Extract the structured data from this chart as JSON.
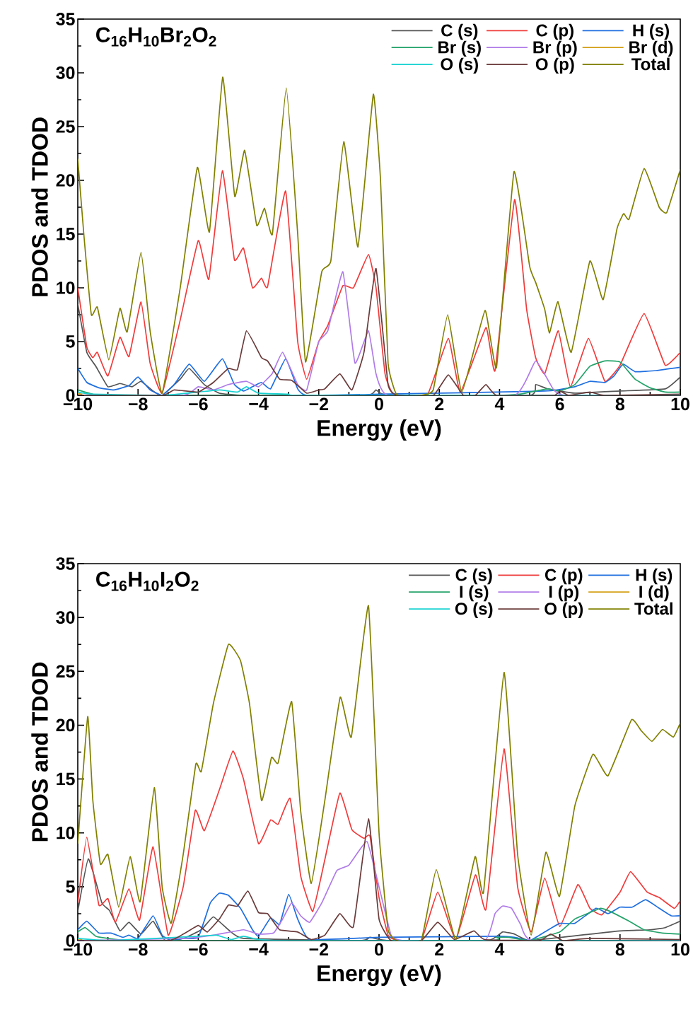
{
  "chart_data": [
    {
      "type": "line",
      "title": "C$_{16}$H$_{10}$Br$_{2}$O$_{2}$",
      "xlabel": "Energy (eV)",
      "ylabel": "PDOS and TDOD",
      "xlim": [
        -10,
        10
      ],
      "ylim": [
        0,
        35
      ],
      "xticks": [
        {
          "value": -10,
          "label": "−10"
        },
        {
          "value": -8,
          "label": "−8"
        },
        {
          "value": -6,
          "label": "−6"
        },
        {
          "value": -4,
          "label": "−4"
        },
        {
          "value": -2,
          "label": "−2"
        },
        0,
        2,
        4,
        6,
        8,
        10
      ],
      "yticks": [
        0,
        5,
        10,
        15,
        20,
        25,
        30,
        35
      ],
      "legend": "top right",
      "marker": "none",
      "line_style": "solid",
      "series": [
        {
          "name": "C (s)",
          "color": "#555555",
          "x": [
            -10,
            -9.7,
            -9.4,
            -9.0,
            -8.6,
            -8.2,
            -7.9,
            -7.5,
            -7.2,
            -6.6,
            -6.3,
            -5.8,
            -5.3,
            -4.5,
            -0.4,
            -0.1,
            0.3,
            5.0,
            5.2,
            5.6,
            6.5,
            8,
            9.5,
            10
          ],
          "values": [
            8.5,
            4,
            2.7,
            0.8,
            1.1,
            0.8,
            1.3,
            0.4,
            0,
            1.5,
            2.5,
            1,
            0.2,
            0,
            0,
            0.5,
            0,
            0,
            1.0,
            0.6,
            0.2,
            0.4,
            0.6,
            1.7
          ]
        },
        {
          "name": "C (p)",
          "color": "#f03c3c",
          "x": [
            -10,
            -9.7,
            -9.5,
            -9.35,
            -9.0,
            -8.6,
            -8.3,
            -7.9,
            -7.6,
            -7.2,
            -6.6,
            -6.0,
            -5.65,
            -5.2,
            -4.8,
            -4.5,
            -4.2,
            -3.9,
            -3.7,
            -3.1,
            -2.7,
            -2.4,
            -2.0,
            -1.7,
            -1.2,
            -0.85,
            -0.35,
            -0.1,
            0.2,
            0.5,
            1.6,
            2.3,
            2.7,
            3.55,
            3.85,
            4.5,
            4.9,
            5.2,
            5.5,
            5.95,
            6.35,
            6.95,
            7.5,
            8.0,
            8.8,
            9.5,
            10
          ],
          "values": [
            10,
            4.5,
            3.5,
            4,
            1.8,
            5.4,
            3.6,
            8.7,
            3,
            0.2,
            7,
            14.4,
            10.8,
            20.9,
            12.6,
            13.7,
            10,
            10.9,
            10.1,
            19,
            5,
            1.5,
            5,
            6.5,
            10.2,
            10,
            13.1,
            10,
            2,
            0,
            0,
            5.3,
            0.3,
            6.3,
            2.3,
            18.2,
            8,
            3.5,
            2,
            6,
            0.8,
            5.3,
            1.3,
            2.8,
            7.6,
            2.8,
            4
          ]
        },
        {
          "name": "H (s)",
          "color": "#1f6fe0",
          "x": [
            -10,
            -9.7,
            -9.3,
            -8.8,
            -8.3,
            -8.0,
            -7.6,
            -7.2,
            -6.8,
            -6.3,
            -5.8,
            -5.2,
            -4.8,
            -4.5,
            -4.2,
            -3.9,
            -3.6,
            -3.1,
            -2.7,
            -2.4,
            0,
            5.5,
            6.5,
            7.0,
            7.5,
            7.8,
            8.1,
            8.5,
            9.2,
            10
          ],
          "values": [
            2.5,
            1.2,
            0.7,
            0.5,
            0.9,
            1.7,
            0.5,
            0,
            1,
            2.9,
            1.3,
            3.4,
            1.0,
            0.4,
            0.8,
            1.2,
            0.6,
            3.4,
            0.6,
            0,
            0.1,
            0.4,
            0.8,
            1.3,
            1.2,
            1.8,
            2.9,
            2.2,
            2.3,
            2.6
          ]
        },
        {
          "name": "Br (s)",
          "color": "#23a36a",
          "x": [
            -10,
            -9.5,
            -9,
            4,
            5,
            5.6,
            6.0,
            6.5,
            7.0,
            7.5,
            8.0,
            8.5,
            9.0,
            9.5,
            10
          ],
          "values": [
            0.5,
            0.1,
            0,
            0,
            0.3,
            0.6,
            0.4,
            1.0,
            2.7,
            3.2,
            3.1,
            1.5,
            0.7,
            0.3,
            0.3
          ]
        },
        {
          "name": "Br (p)",
          "color": "#b07ce8",
          "x": [
            -10,
            -6.5,
            -6.0,
            -5.5,
            -5.0,
            -4.4,
            -4.0,
            -3.55,
            -3.2,
            -2.7,
            -2.4,
            -2.0,
            -1.7,
            -1.2,
            -0.8,
            -0.35,
            -0.1,
            0.3,
            4.5,
            5.2,
            5.8,
            6.2,
            10
          ],
          "values": [
            0,
            0,
            0.8,
            0.5,
            1,
            1.3,
            0.8,
            2,
            4,
            1,
            0.5,
            5,
            6,
            11.5,
            3,
            6,
            2,
            0,
            0,
            3.2,
            0.5,
            0,
            0
          ]
        },
        {
          "name": "Br (d)",
          "color": "#d4a017",
          "x": [
            -10,
            -9.85
          ],
          "values": [
            0.15,
            0.1
          ]
        },
        {
          "name": "O (s)",
          "color": "#19d2d2",
          "x": [
            -10,
            -9.5,
            -7.2,
            -6,
            -5.3,
            -4.7,
            -4.4,
            -4.0,
            -3,
            -2.5,
            10
          ],
          "values": [
            0.3,
            0.1,
            0,
            0.3,
            0.5,
            0.3,
            0.8,
            0.2,
            0.1,
            0,
            0
          ]
        },
        {
          "name": "O (p)",
          "color": "#6b3b3b",
          "x": [
            -10,
            -7.2,
            -6.8,
            -6.0,
            -5.5,
            -5.0,
            -4.7,
            -4.4,
            -3.9,
            -3.7,
            -3.3,
            -2.9,
            -2.4,
            -2.0,
            -1.8,
            -1.3,
            -0.9,
            -0.5,
            -0.1,
            0.3,
            0.6,
            1.8,
            2.3,
            2.8,
            3.2,
            3.55,
            3.9,
            5.8,
            6.0,
            6.3,
            7.0,
            7.5,
            10
          ],
          "values": [
            0,
            0,
            0.5,
            0.3,
            1.2,
            2.5,
            2.4,
            6,
            3.5,
            3.2,
            1.5,
            1.4,
            0.2,
            0.5,
            0.6,
            2.0,
            0.5,
            4,
            11.8,
            1,
            0,
            0,
            1.9,
            0,
            0,
            1,
            0,
            0,
            0.4,
            0,
            0.3,
            0,
            0.1
          ]
        },
        {
          "name": "Total",
          "color": "#808000",
          "x": [
            -10,
            -9.8,
            -9.55,
            -9.35,
            -8.97,
            -8.6,
            -8.36,
            -7.9,
            -7.6,
            -7.2,
            -6.6,
            -6.03,
            -5.63,
            -5.19,
            -4.79,
            -4.46,
            -4.06,
            -3.8,
            -3.54,
            -3.08,
            -2.7,
            -2.44,
            -1.9,
            -1.6,
            -1.17,
            -0.7,
            -0.19,
            0.05,
            0.3,
            0.6,
            1.4,
            1.8,
            2.28,
            2.75,
            3.52,
            3.9,
            4.48,
            5.0,
            5.2,
            5.5,
            5.66,
            5.94,
            6.38,
            7.0,
            7.44,
            7.9,
            8.12,
            8.3,
            8.8,
            9.3,
            9.55,
            10
          ],
          "values": [
            22,
            15,
            7.5,
            8.2,
            3.3,
            8.1,
            5.9,
            13.3,
            6,
            0.2,
            10,
            21.2,
            15.2,
            29.6,
            18.5,
            22.8,
            15.8,
            17.4,
            15,
            28.6,
            15,
            3.1,
            11.5,
            12.5,
            23.6,
            13.8,
            28,
            20,
            3,
            0,
            0,
            0.5,
            7.5,
            0.3,
            7.9,
            2.6,
            20.8,
            12,
            10.5,
            8,
            5.8,
            8.7,
            4,
            12.5,
            8.9,
            15.5,
            16.9,
            16.4,
            21.1,
            17.5,
            17,
            21
          ]
        }
      ]
    },
    {
      "type": "line",
      "title": "C$_{16}$H$_{10}$I$_{2}$O$_{2}$",
      "xlabel": "Energy (eV)",
      "ylabel": "PDOS and TDOD",
      "xlim": [
        -10,
        10
      ],
      "ylim": [
        0,
        35
      ],
      "xticks": [
        {
          "value": -10,
          "label": "−10"
        },
        {
          "value": -8,
          "label": "−8"
        },
        {
          "value": -6,
          "label": "−6"
        },
        {
          "value": -4,
          "label": "−4"
        },
        {
          "value": -2,
          "label": "−2"
        },
        0,
        2,
        4,
        6,
        8,
        10
      ],
      "yticks": [
        0,
        5,
        10,
        15,
        20,
        25,
        30,
        35
      ],
      "legend": "top right",
      "marker": "none",
      "line_style": "solid",
      "series": [
        {
          "name": "C (s)",
          "color": "#555555",
          "x": [
            -10,
            -9.65,
            -9.2,
            -8.95,
            -8.6,
            -8.3,
            -7.9,
            -7.5,
            -7.1,
            -6.5,
            -5.9,
            -5.5,
            -5.0,
            -4.5,
            -0.6,
            -0.3,
            0.3,
            3.6,
            4.1,
            4.5,
            5,
            7,
            8,
            9,
            9.5,
            10
          ],
          "values": [
            2.7,
            7.6,
            3.5,
            2.8,
            0.9,
            1.7,
            0.6,
            1.8,
            0,
            0.2,
            1,
            2.2,
            1,
            0.2,
            0,
            0.3,
            0,
            0,
            0.8,
            0.6,
            0,
            0.6,
            0.9,
            1.0,
            1.2,
            1.8
          ]
        },
        {
          "name": "C (p)",
          "color": "#f03c3c",
          "x": [
            -10,
            -9.7,
            -9.3,
            -9.0,
            -8.75,
            -8.3,
            -7.95,
            -7.5,
            -7.0,
            -6.5,
            -6.1,
            -5.8,
            -5.3,
            -4.85,
            -4.5,
            -4.0,
            -3.6,
            -3.35,
            -2.95,
            -2.6,
            -2.2,
            -1.8,
            -1.3,
            -0.9,
            -0.5,
            -0.3,
            0,
            0.3,
            0.6,
            1.4,
            1.95,
            2.55,
            3.2,
            3.55,
            4.15,
            4.6,
            5.05,
            5.5,
            6.0,
            6.6,
            7.0,
            7.4,
            8.0,
            8.35,
            8.9,
            9.3,
            9.8,
            10
          ],
          "values": [
            3.5,
            9.6,
            3.3,
            3.9,
            1.7,
            4.8,
            1.9,
            8.7,
            0.5,
            5,
            12.1,
            10.2,
            14,
            17.6,
            15,
            9,
            11.2,
            10.8,
            13.2,
            6,
            2.7,
            7.5,
            13.7,
            10.3,
            9.5,
            9.7,
            4,
            0.5,
            0,
            0,
            4.5,
            0.1,
            6.1,
            2.9,
            17.8,
            5,
            0.8,
            5.8,
            1.3,
            5.2,
            3,
            2.4,
            4.5,
            6.4,
            4.5,
            4.0,
            3.0,
            3.7
          ]
        },
        {
          "name": "H (s)",
          "color": "#1f6fe0",
          "x": [
            -10,
            -9.7,
            -9.3,
            -8.9,
            -8.5,
            -8.3,
            -8.0,
            -7.5,
            -7.2,
            -6.9,
            -6.5,
            -6.0,
            -5.6,
            -5.3,
            -5.0,
            -4.6,
            -4.2,
            -4.0,
            -3.6,
            -3.3,
            -3.0,
            -2.7,
            -2.3,
            0,
            4,
            4.5,
            5,
            5.5,
            6,
            6.5,
            7.2,
            7.6,
            8.0,
            8.4,
            8.85,
            9.3,
            9.7,
            10
          ],
          "values": [
            1.0,
            1.8,
            0.7,
            0.7,
            0.3,
            0.5,
            0.2,
            2.3,
            0.5,
            0,
            0.2,
            0.3,
            3.5,
            4.4,
            4.2,
            3,
            1,
            0.4,
            2.1,
            1.5,
            4.3,
            2,
            0.1,
            0.3,
            0.4,
            0.3,
            0,
            0.8,
            1.6,
            1.6,
            3.0,
            2.5,
            3.1,
            3.1,
            3.8,
            3.0,
            2.3,
            2.3
          ]
        },
        {
          "name": "I (s)",
          "color": "#23a36a",
          "x": [
            -10,
            -9.75,
            -9.4,
            -9.0,
            -8,
            3.6,
            3.9,
            4.3,
            5,
            6,
            6.5,
            7.0,
            7.35,
            7.6,
            8.3,
            8.8,
            9.4,
            10
          ],
          "values": [
            0.8,
            1.2,
            0.4,
            0.2,
            0,
            0,
            0.3,
            0.3,
            0,
            0.8,
            2.0,
            2.6,
            3.0,
            2.8,
            1.8,
            1.0,
            0.7,
            0.6
          ]
        },
        {
          "name": "I (p)",
          "color": "#b07ce8",
          "x": [
            -10,
            -6.5,
            -5.5,
            -4.5,
            -4.0,
            -3.5,
            -3.2,
            -2.9,
            -2.6,
            -2.3,
            -1.9,
            -1.4,
            -1.0,
            -0.4,
            0,
            0.4,
            0.8,
            3.5,
            3.85,
            4.1,
            4.4,
            4.7,
            5.1,
            10
          ],
          "values": [
            0,
            0.2,
            0.5,
            1.0,
            0.6,
            0.7,
            2,
            3.5,
            2.3,
            1.7,
            3.5,
            6.5,
            7,
            9.2,
            5,
            0.5,
            0,
            0,
            2.5,
            3.2,
            3.0,
            1.5,
            0,
            0
          ]
        },
        {
          "name": "I (d)",
          "color": "#d4a017",
          "x": [
            -10,
            -9.85
          ],
          "values": [
            0.15,
            0.1
          ]
        },
        {
          "name": "O (s)",
          "color": "#19d2d2",
          "x": [
            -10,
            -9,
            -6,
            -5.4,
            -4.9,
            -4.5,
            -4,
            -3,
            10
          ],
          "values": [
            0.2,
            0,
            0.4,
            0.5,
            0.1,
            0.4,
            0.1,
            0,
            0
          ]
        },
        {
          "name": "O (p)",
          "color": "#6b3b3b",
          "x": [
            -10,
            -7,
            -6.5,
            -6.0,
            -5.7,
            -5.3,
            -5.0,
            -4.7,
            -4.35,
            -4.0,
            -3.7,
            -3.3,
            -2.7,
            -2.25,
            -1.8,
            -1.3,
            -0.85,
            -0.35,
            0,
            0.4,
            1.4,
            1.95,
            2.5,
            3.15,
            3.5,
            5.3,
            5.7,
            6.1,
            7,
            10
          ],
          "values": [
            0,
            0,
            0.6,
            1.4,
            0.8,
            2.0,
            3.3,
            3.2,
            4.6,
            2.6,
            2.5,
            1,
            0.8,
            0.1,
            0.5,
            2.5,
            1.3,
            11.3,
            2,
            0,
            0,
            1.7,
            0.1,
            0.9,
            0.1,
            0,
            0.6,
            0,
            0.2,
            0.1
          ]
        },
        {
          "name": "Total",
          "color": "#808000",
          "x": [
            -10,
            -9.67,
            -9.5,
            -9.25,
            -9.0,
            -8.64,
            -8.26,
            -7.93,
            -7.46,
            -7.2,
            -6.9,
            -6.5,
            -6.08,
            -5.9,
            -5.5,
            -5.0,
            -4.6,
            -4.3,
            -3.9,
            -3.57,
            -3.35,
            -2.9,
            -2.6,
            -2.25,
            -1.8,
            -1.29,
            -0.92,
            -0.35,
            0,
            0.3,
            0.6,
            1.4,
            1.9,
            2.55,
            3.19,
            3.47,
            4.15,
            4.6,
            5.05,
            5.54,
            5.99,
            6.5,
            7.1,
            7.6,
            8.38,
            8.7,
            9.06,
            9.41,
            9.77,
            10
          ],
          "values": [
            9,
            20.8,
            13,
            7.1,
            8,
            3.1,
            7.8,
            3.6,
            14.2,
            5,
            1.6,
            8,
            16.4,
            15.7,
            22,
            27.5,
            26,
            22,
            13,
            17,
            16.5,
            22.2,
            12,
            5.3,
            13,
            22.6,
            18.9,
            31.1,
            10,
            1,
            0,
            0,
            6.6,
            0.1,
            7.8,
            4.5,
            24.9,
            8,
            0.5,
            8.2,
            4.1,
            12.5,
            17.3,
            15.3,
            20.5,
            19.5,
            18.5,
            19.6,
            18.9,
            20.2
          ]
        }
      ]
    }
  ]
}
